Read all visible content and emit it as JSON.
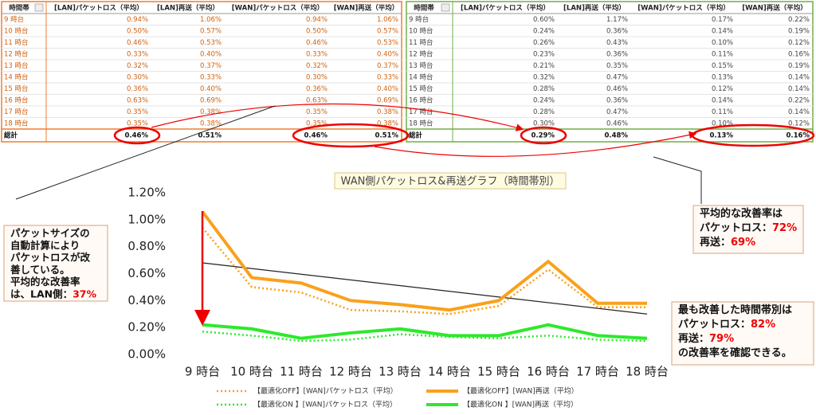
{
  "tables": [
    {
      "header": [
        "時間帯",
        "[LAN]パケットロス（平均）",
        "[LAN]再送（平均）",
        "[WAN]パケットロス（平均）",
        "[WAN]再送（平均）"
      ],
      "rows": [
        [
          "9 時台",
          "0.94%",
          "1.06%",
          "0.94%",
          "1.06%"
        ],
        [
          "10 時台",
          "0.50%",
          "0.57%",
          "0.50%",
          "0.57%"
        ],
        [
          "11 時台",
          "0.46%",
          "0.53%",
          "0.46%",
          "0.53%"
        ],
        [
          "12 時台",
          "0.33%",
          "0.40%",
          "0.33%",
          "0.40%"
        ],
        [
          "13 時台",
          "0.32%",
          "0.37%",
          "0.32%",
          "0.37%"
        ],
        [
          "14 時台",
          "0.30%",
          "0.33%",
          "0.30%",
          "0.33%"
        ],
        [
          "15 時台",
          "0.36%",
          "0.40%",
          "0.36%",
          "0.40%"
        ],
        [
          "16 時台",
          "0.63%",
          "0.69%",
          "0.63%",
          "0.69%"
        ],
        [
          "17 時台",
          "0.35%",
          "0.38%",
          "0.35%",
          "0.38%"
        ],
        [
          "18 時台",
          "0.35%",
          "0.38%",
          "0.35%",
          "0.38%"
        ]
      ],
      "total": [
        "総計",
        "0.46%",
        "0.51%",
        "0.46%",
        "0.51%"
      ]
    },
    {
      "header": [
        "時間帯",
        "[LAN]パケットロス（平均）",
        "[LAN]再送（平均）",
        "[WAN]パケットロス（平均）",
        "[WAN]再送（平均）"
      ],
      "rows": [
        [
          "9 時台",
          "0.60%",
          "1.17%",
          "0.17%",
          "0.22%"
        ],
        [
          "10 時台",
          "0.24%",
          "0.36%",
          "0.14%",
          "0.19%"
        ],
        [
          "11 時台",
          "0.26%",
          "0.43%",
          "0.10%",
          "0.12%"
        ],
        [
          "12 時台",
          "0.23%",
          "0.36%",
          "0.11%",
          "0.16%"
        ],
        [
          "13 時台",
          "0.21%",
          "0.35%",
          "0.15%",
          "0.19%"
        ],
        [
          "14 時台",
          "0.32%",
          "0.47%",
          "0.13%",
          "0.14%"
        ],
        [
          "15 時台",
          "0.28%",
          "0.46%",
          "0.12%",
          "0.14%"
        ],
        [
          "16 時台",
          "0.24%",
          "0.36%",
          "0.14%",
          "0.22%"
        ],
        [
          "17 時台",
          "0.28%",
          "0.47%",
          "0.11%",
          "0.14%"
        ],
        [
          "18 時台",
          "0.30%",
          "0.46%",
          "0.10%",
          "0.12%"
        ]
      ],
      "total": [
        "総計",
        "0.29%",
        "0.48%",
        "0.13%",
        "0.16%"
      ]
    }
  ],
  "chart_data": {
    "type": "line",
    "title": "WAN側パケットロス&再送グラフ（時間帯別）",
    "categories": [
      "9 時台",
      "10 時台",
      "11 時台",
      "12 時台",
      "13 時台",
      "14 時台",
      "15 時台",
      "16 時台",
      "17 時台",
      "18 時台"
    ],
    "series": [
      {
        "name": "【最適化OFF】[WAN]パケットロス（平均）",
        "color": "#f9a11b",
        "style": "dotted",
        "values": [
          0.94,
          0.5,
          0.46,
          0.33,
          0.32,
          0.3,
          0.36,
          0.63,
          0.35,
          0.35
        ]
      },
      {
        "name": "【最適化OFF】[WAN]再送（平均）",
        "color": "#f9a11b",
        "style": "solid",
        "values": [
          1.06,
          0.57,
          0.53,
          0.4,
          0.37,
          0.33,
          0.4,
          0.69,
          0.38,
          0.38
        ]
      },
      {
        "name": "【最適化ON 】[WAN]パケットロス（平均）",
        "color": "#2ee82e",
        "style": "dotted",
        "values": [
          0.17,
          0.14,
          0.1,
          0.11,
          0.15,
          0.13,
          0.12,
          0.14,
          0.11,
          0.1
        ]
      },
      {
        "name": "【最適化ON 】[WAN]再送（平均）",
        "color": "#2ee82e",
        "style": "solid",
        "values": [
          0.22,
          0.19,
          0.12,
          0.16,
          0.19,
          0.14,
          0.14,
          0.22,
          0.14,
          0.12
        ]
      }
    ],
    "trend": [
      0.68,
      0.3
    ],
    "ylim": [
      0,
      1.2
    ],
    "yticks": [
      {
        "value": 0,
        "label": "0.00%"
      },
      {
        "value": 0.2,
        "label": "0.20%"
      },
      {
        "value": 0.4,
        "label": "0.40%"
      },
      {
        "value": 0.6,
        "label": "0.60%"
      },
      {
        "value": 0.8,
        "label": "0.80%"
      },
      {
        "value": 1.0,
        "label": "1.00%"
      },
      {
        "value": 1.2,
        "label": "1.20%"
      }
    ]
  },
  "callouts": [
    {
      "lines": [
        [
          "パケットサイズの"
        ],
        [
          "自動計算により"
        ],
        [
          "パケットロスが改"
        ],
        [
          "善している。"
        ],
        [
          "平均的な改善率"
        ],
        [
          "は、LAN側：",
          "37%"
        ]
      ]
    },
    {
      "lines": [
        [
          "平均的な改善率は"
        ],
        [
          "パケットロス：",
          "72%"
        ],
        [
          "再送：",
          "69%"
        ]
      ]
    },
    {
      "lines": [
        [
          "最も改善した時間帯別は"
        ],
        [
          "パケットロス：",
          "82%"
        ],
        [
          "再送：",
          "79%"
        ],
        [
          "の改善率を確認できる。"
        ]
      ]
    }
  ]
}
